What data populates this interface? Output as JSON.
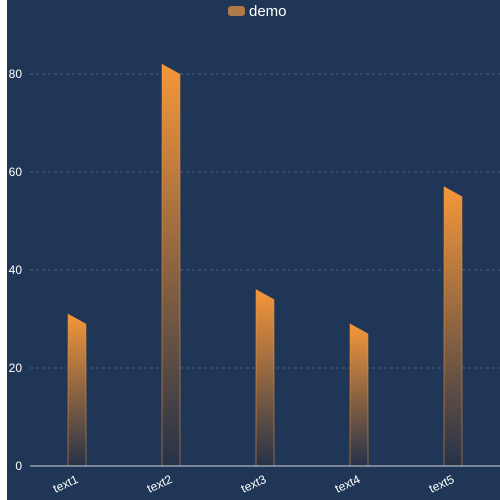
{
  "chart_data": {
    "type": "bar",
    "title": "",
    "xlabel": "",
    "ylabel": "",
    "categories": [
      "text1",
      "text2",
      "text3",
      "text4",
      "text5"
    ],
    "series": [
      {
        "name": "demo",
        "values": [
          31,
          82,
          36,
          29,
          57
        ]
      }
    ],
    "ylim": [
      0,
      90
    ],
    "y_ticks": [
      "0",
      "20",
      "40",
      "60",
      "80"
    ],
    "grid": true,
    "legend": "top-center",
    "colors": {
      "background": "#1f3656",
      "bar_top": "#f5973a",
      "bar_bottom": "#263248",
      "legend_swatch": "#b07a48",
      "grid": "#5a6f8c",
      "axis": "#d0d6de"
    }
  }
}
